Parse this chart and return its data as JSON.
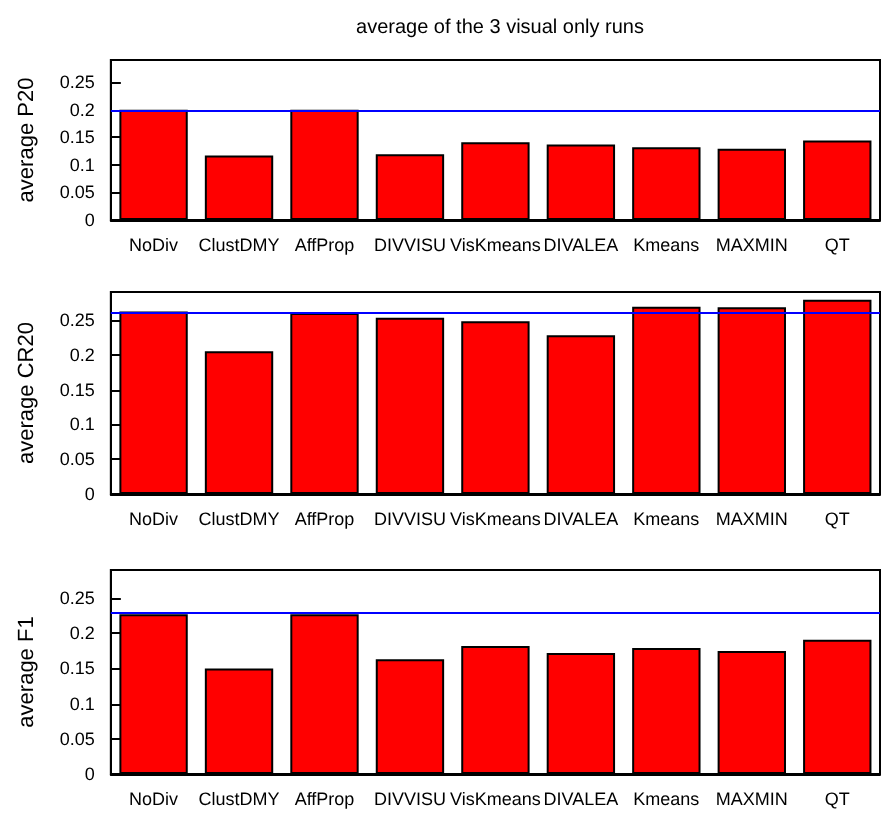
{
  "chart_data": [
    {
      "type": "bar",
      "title": "average of the 3 visual only runs",
      "ylabel": "average P20",
      "categories": [
        "NoDiv",
        "ClustDMY",
        "AffProp",
        "DIVVISU",
        "VisKmeans",
        "DIVALEA",
        "Kmeans",
        "MAXMIN",
        "QT"
      ],
      "series": [
        {
          "color": "#ff0000",
          "values": [
            0.2,
            0.117,
            0.2,
            0.119,
            0.141,
            0.137,
            0.132,
            0.129,
            0.144
          ]
        }
      ],
      "ylim": [
        0,
        0.29
      ],
      "yticks": [
        0,
        0.05,
        0.1,
        0.15,
        0.2,
        0.25
      ],
      "ref_lines": [
        {
          "axis": "y",
          "value": 0.2,
          "color": "#0000ff"
        }
      ]
    },
    {
      "type": "bar",
      "ylabel": "average CR20",
      "categories": [
        "NoDiv",
        "ClustDMY",
        "AffProp",
        "DIVVISU",
        "VisKmeans",
        "DIVALEA",
        "Kmeans",
        "MAXMIN",
        "QT"
      ],
      "series": [
        {
          "color": "#ff0000",
          "values": [
            0.262,
            0.205,
            0.26,
            0.253,
            0.248,
            0.228,
            0.269,
            0.268,
            0.279
          ]
        }
      ],
      "ylim": [
        0,
        0.29
      ],
      "yticks": [
        0,
        0.05,
        0.1,
        0.15,
        0.2,
        0.25
      ],
      "ref_lines": [
        {
          "axis": "y",
          "value": 0.262,
          "color": "#0000ff"
        }
      ]
    },
    {
      "type": "bar",
      "ylabel": "average F1",
      "categories": [
        "NoDiv",
        "ClustDMY",
        "AffProp",
        "DIVVISU",
        "VisKmeans",
        "DIVALEA",
        "Kmeans",
        "MAXMIN",
        "QT"
      ],
      "series": [
        {
          "color": "#ff0000",
          "values": [
            0.227,
            0.15,
            0.227,
            0.163,
            0.182,
            0.172,
            0.179,
            0.175,
            0.191
          ]
        }
      ],
      "ylim": [
        0,
        0.29
      ],
      "yticks": [
        0,
        0.05,
        0.1,
        0.15,
        0.2,
        0.25
      ],
      "ref_lines": [
        {
          "axis": "y",
          "value": 0.227,
          "color": "#0000ff"
        }
      ]
    }
  ]
}
